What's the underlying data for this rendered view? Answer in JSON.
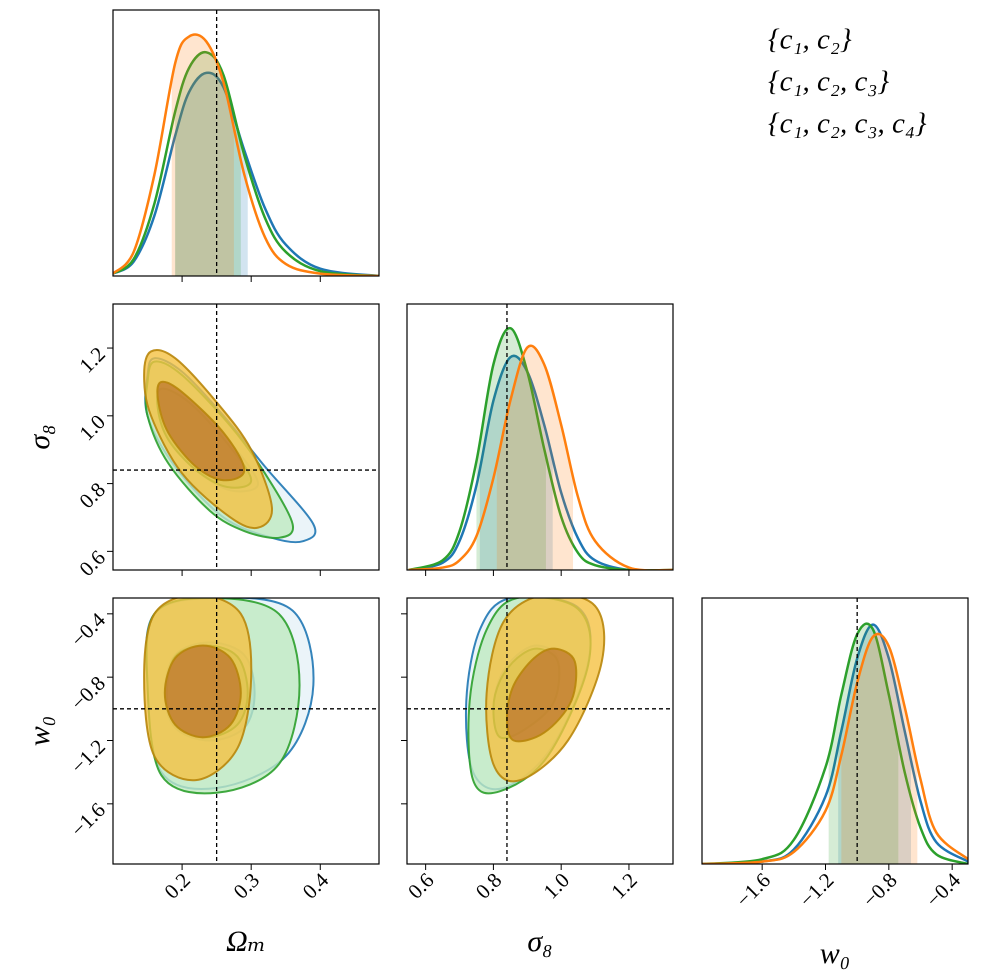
{
  "chart_data": {
    "type": "corner",
    "series": [
      {
        "name": "{c₁, c₂}",
        "color": "#1f77b4",
        "contour_edge": "#1f77b4",
        "contour_fill": [
          "#e6f1f8",
          "#9ec3dd"
        ]
      },
      {
        "name": "{c₁, c₂, c₃}",
        "color": "#2ca02c",
        "contour_edge": "#2ca02c",
        "contour_fill": [
          "#bfeac0",
          "#8fd08f"
        ]
      },
      {
        "name": "{c₁, c₂, c₃, c₄}",
        "color": "#ff7f0e",
        "contour_edge": "#b8860b",
        "contour_fill": [
          "#f5c242",
          "#c07a30"
        ]
      }
    ],
    "parameters": [
      {
        "label": "Ωₘ",
        "lim": [
          0.1,
          0.485
        ],
        "ticks": [
          0.2,
          0.3,
          0.4
        ],
        "truth": 0.25,
        "marginal": {
          "ylim": [
            0,
            1.1
          ],
          "x": [
            0.1,
            0.13,
            0.16,
            0.19,
            0.21,
            0.235,
            0.26,
            0.29,
            0.32,
            0.35,
            0.4,
            0.485
          ],
          "curves": [
            {
              "values": [
                0.01,
                0.06,
                0.25,
                0.58,
                0.76,
                0.84,
                0.78,
                0.52,
                0.28,
                0.13,
                0.03,
                0.0
              ],
              "band": [
                0.19,
                0.295
              ]
            },
            {
              "values": [
                0.01,
                0.07,
                0.3,
                0.68,
                0.86,
                0.925,
                0.83,
                0.5,
                0.24,
                0.1,
                0.02,
                0.0
              ],
              "band": [
                0.19,
                0.285
              ]
            },
            {
              "values": [
                0.01,
                0.1,
                0.42,
                0.88,
                0.99,
                0.97,
                0.8,
                0.42,
                0.16,
                0.05,
                0.01,
                0.0
              ],
              "band": [
                0.185,
                0.275
              ]
            }
          ]
        }
      },
      {
        "label": "σ₈",
        "lim": [
          0.545,
          1.33
        ],
        "ticks": [
          0.6,
          0.8,
          {
            "value": 1,
            "label": "1.0"
          },
          1.2
        ],
        "truth": 0.84,
        "marginal": {
          "ylim": [
            0,
            1.1
          ],
          "x": [
            0.55,
            0.65,
            0.7,
            0.75,
            0.8,
            0.85,
            0.9,
            0.95,
            1.0,
            1.05,
            1.1,
            1.2,
            1.33
          ],
          "curves": [
            {
              "values": [
                0.0,
                0.03,
                0.12,
                0.35,
                0.7,
                0.88,
                0.82,
                0.6,
                0.32,
                0.13,
                0.04,
                0.0,
                0.0
              ],
              "band": [
                0.76,
                0.975
              ]
            },
            {
              "values": [
                0.0,
                0.04,
                0.16,
                0.45,
                0.85,
                1.0,
                0.82,
                0.5,
                0.22,
                0.07,
                0.02,
                0.0,
                0.0
              ],
              "band": [
                0.75,
                0.955
              ]
            },
            {
              "values": [
                0.0,
                0.01,
                0.04,
                0.14,
                0.38,
                0.7,
                0.92,
                0.85,
                0.6,
                0.3,
                0.12,
                0.01,
                0.0
              ],
              "band": [
                0.81,
                1.035
              ]
            }
          ]
        },
        "contours": [
          [
            [
              {
                "x": [
                  0.16,
                  0.2,
                  0.26,
                  0.32,
                  0.39,
                  0.375,
                  0.33,
                  0.26,
                  0.19,
                  0.15,
                  0.15
                ],
                "y": [
                  1.17,
                  1.13,
                  1.0,
                  0.85,
                  0.68,
                  0.63,
                  0.64,
                  0.7,
                  0.85,
                  1.0,
                  1.12
                ]
              },
              {
                "x": [
                  0.17,
                  0.21,
                  0.27,
                  0.31,
                  0.27,
                  0.22,
                  0.18,
                  0.165
                ],
                "y": [
                  1.08,
                  1.04,
                  0.92,
                  0.8,
                  0.78,
                  0.84,
                  0.93,
                  1.02
                ]
              }
            ],
            [
              {
                "x": [
                  0.16,
                  0.2,
                  0.27,
                  0.32,
                  0.36,
                  0.34,
                  0.29,
                  0.24,
                  0.18,
                  0.15,
                  0.15
                ],
                "y": [
                  1.16,
                  1.12,
                  0.97,
                  0.83,
                  0.68,
                  0.64,
                  0.66,
                  0.72,
                  0.86,
                  1.0,
                  1.1
                ]
              },
              {
                "x": [
                  0.17,
                  0.21,
                  0.265,
                  0.3,
                  0.265,
                  0.22,
                  0.18,
                  0.165
                ],
                "y": [
                  1.08,
                  1.04,
                  0.92,
                  0.81,
                  0.79,
                  0.84,
                  0.93,
                  1.02
                ]
              }
            ],
            [
              {
                "x": [
                  0.155,
                  0.19,
                  0.25,
                  0.3,
                  0.33,
                  0.31,
                  0.27,
                  0.2,
                  0.155,
                  0.145
                ],
                "y": [
                  1.19,
                  1.17,
                  1.04,
                  0.9,
                  0.73,
                  0.67,
                  0.7,
                  0.83,
                  1.0,
                  1.12
                ]
              },
              {
                "x": [
                  0.17,
                  0.2,
                  0.26,
                  0.29,
                  0.26,
                  0.22,
                  0.18,
                  0.165
                ],
                "y": [
                  1.1,
                  1.07,
                  0.95,
                  0.84,
                  0.81,
                  0.85,
                  0.95,
                  1.05
                ]
              }
            ]
          ]
        ]
      },
      {
        "label": "w₀",
        "lim": [
          -1.98,
          -0.3
        ],
        "ticks": [
          {
            "value": -1.6,
            "label": "−1.6"
          },
          {
            "value": -1.2,
            "label": "−1.2"
          },
          {
            "value": -0.8,
            "label": "−0.8"
          },
          {
            "value": -0.4,
            "label": "−0.4"
          }
        ],
        "truth": -1.0,
        "marginal": {
          "ylim": [
            0,
            1.1
          ],
          "x": [
            -1.98,
            -1.6,
            -1.4,
            -1.2,
            -1.1,
            -1.0,
            -0.9,
            -0.8,
            -0.7,
            -0.6,
            -0.5,
            -0.3
          ],
          "curves": [
            {
              "values": [
                0.0,
                0.01,
                0.06,
                0.28,
                0.55,
                0.85,
                0.99,
                0.85,
                0.55,
                0.26,
                0.09,
                0.01
              ],
              "band": [
                -1.12,
                -0.66
              ]
            },
            {
              "values": [
                0.0,
                0.02,
                0.1,
                0.4,
                0.7,
                0.95,
                0.97,
                0.7,
                0.38,
                0.15,
                0.04,
                0.0
              ],
              "band": [
                -1.18,
                -0.74
              ]
            },
            {
              "values": [
                0.0,
                0.01,
                0.05,
                0.22,
                0.45,
                0.75,
                0.94,
                0.9,
                0.65,
                0.35,
                0.13,
                0.02
              ],
              "band": [
                -1.1,
                -0.62
              ]
            }
          ]
        },
        "contours": [
          [
            [
              {
                "x": [
                  0.25,
                  0.36,
                  0.39,
                  0.35,
                  0.25,
                  0.17,
                  0.15,
                  0.16
                ],
                "y": [
                  -0.3,
                  -0.38,
                  -0.85,
                  -1.3,
                  -1.5,
                  -1.4,
                  -0.85,
                  -0.4
                ]
              },
              {
                "x": [
                  0.24,
                  0.29,
                  0.305,
                  0.29,
                  0.24,
                  0.19,
                  0.175,
                  0.19
                ],
                "y": [
                  -0.58,
                  -0.66,
                  -0.9,
                  -1.12,
                  -1.2,
                  -1.12,
                  -0.9,
                  -0.66
                ]
              }
            ],
            [
              {
                "x": [
                  0.24,
                  0.34,
                  0.37,
                  0.34,
                  0.25,
                  0.17,
                  0.15,
                  0.16
                ],
                "y": [
                  -0.3,
                  -0.4,
                  -0.85,
                  -1.35,
                  -1.53,
                  -1.42,
                  -0.85,
                  -0.4
                ]
              },
              {
                "x": [
                  0.235,
                  0.28,
                  0.295,
                  0.28,
                  0.235,
                  0.19,
                  0.178,
                  0.19
                ],
                "y": [
                  -0.6,
                  -0.67,
                  -0.9,
                  -1.1,
                  -1.18,
                  -1.1,
                  -0.9,
                  -0.67
                ]
              }
            ],
            [
              {
                "x": [
                  0.22,
                  0.285,
                  0.3,
                  0.28,
                  0.22,
                  0.16,
                  0.145,
                  0.16
                ],
                "y": [
                  -0.28,
                  -0.4,
                  -0.8,
                  -1.25,
                  -1.45,
                  -1.3,
                  -0.8,
                  -0.4
                ]
              },
              {
                "x": [
                  0.23,
                  0.27,
                  0.285,
                  0.27,
                  0.23,
                  0.19,
                  0.175,
                  0.19
                ],
                "y": [
                  -0.6,
                  -0.68,
                  -0.9,
                  -1.1,
                  -1.18,
                  -1.1,
                  -0.9,
                  -0.68
                ]
              }
            ]
          ],
          [
            [
              {
                "x": [
                  0.85,
                  1.05,
                  1.08,
                  0.97,
                  0.83,
                  0.74,
                  0.72,
                  0.76
                ],
                "y": [
                  -0.3,
                  -0.36,
                  -0.7,
                  -1.25,
                  -1.5,
                  -1.4,
                  -0.95,
                  -0.5
                ]
              },
              {
                "x": [
                  0.93,
                  0.99,
                  0.98,
                  0.9,
                  0.82,
                  0.8,
                  0.82,
                  0.87
                ],
                "y": [
                  -0.6,
                  -0.68,
                  -0.95,
                  -1.12,
                  -1.18,
                  -1.0,
                  -0.8,
                  -0.66
                ]
              }
            ],
            [
              {
                "x": [
                  0.87,
                  1.05,
                  1.08,
                  0.96,
                  0.82,
                  0.74,
                  0.73,
                  0.78
                ],
                "y": [
                  -0.3,
                  -0.37,
                  -0.72,
                  -1.3,
                  -1.52,
                  -1.45,
                  -0.95,
                  -0.5
                ]
              },
              {
                "x": [
                  0.93,
                  0.99,
                  0.98,
                  0.9,
                  0.82,
                  0.8,
                  0.82,
                  0.87
                ],
                "y": [
                  -0.62,
                  -0.7,
                  -0.95,
                  -1.12,
                  -1.18,
                  -1.0,
                  -0.82,
                  -0.68
                ]
              }
            ],
            [
              {
                "x": [
                  0.95,
                  1.1,
                  1.12,
                  1.02,
                  0.88,
                  0.8,
                  0.78,
                  0.83
                ],
                "y": [
                  -0.28,
                  -0.35,
                  -0.7,
                  -1.2,
                  -1.45,
                  -1.35,
                  -0.9,
                  -0.45
                ]
              },
              {
                "x": [
                  0.98,
                  1.04,
                  1.03,
                  0.95,
                  0.86,
                  0.84,
                  0.86,
                  0.92
                ],
                "y": [
                  -0.62,
                  -0.7,
                  -0.95,
                  -1.15,
                  -1.2,
                  -1.05,
                  -0.85,
                  -0.68
                ]
              }
            ]
          ]
        ]
      }
    ]
  }
}
